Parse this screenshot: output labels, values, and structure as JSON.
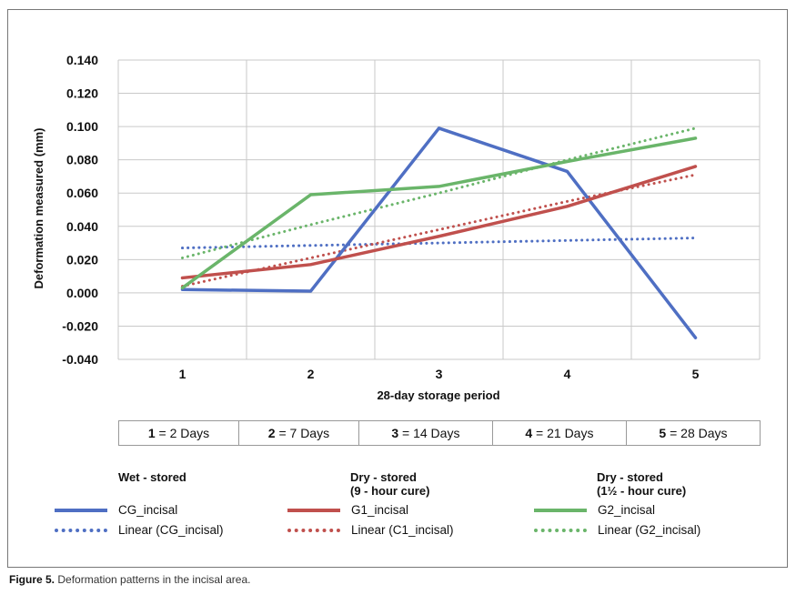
{
  "chart_data": {
    "type": "line",
    "categories": [
      "1",
      "2",
      "3",
      "4",
      "5"
    ],
    "xlabel": "28-day storage period",
    "ylabel": "Deformation measured (mm)",
    "ylim": [
      -0.04,
      0.14
    ],
    "yticks": [
      "0.140",
      "0.120",
      "0.100",
      "0.080",
      "0.060",
      "0.040",
      "0.020",
      "0.000",
      "-0.020",
      "-0.040"
    ],
    "yticks_values": [
      0.14,
      0.12,
      0.1,
      0.08,
      0.06,
      0.04,
      0.02,
      0.0,
      -0.02,
      -0.04
    ],
    "grid": true,
    "series": [
      {
        "name": "CG_incisal",
        "style": "solid",
        "color": "#4f6fc3",
        "values": [
          0.002,
          0.001,
          0.099,
          0.073,
          -0.027
        ]
      },
      {
        "name": "G1_incisal",
        "style": "solid",
        "color": "#c0504d",
        "values": [
          0.009,
          0.017,
          0.034,
          0.052,
          0.076
        ]
      },
      {
        "name": "G2_incisal",
        "style": "solid",
        "color": "#6ab56a",
        "values": [
          0.003,
          0.059,
          0.064,
          0.079,
          0.093
        ]
      },
      {
        "name": "Linear (CG_incisal)",
        "style": "dotted",
        "color": "#4f6fc3",
        "values": [
          0.027,
          0.0285,
          0.03,
          0.0315,
          0.033
        ]
      },
      {
        "name": "Linear (C1_incisal)",
        "style": "dotted",
        "color": "#c0504d",
        "values": [
          0.004,
          0.021,
          0.038,
          0.055,
          0.071
        ]
      },
      {
        "name": "Linear (G2_incisal)",
        "style": "dotted",
        "color": "#6ab56a",
        "values": [
          0.021,
          0.041,
          0.06,
          0.08,
          0.099
        ]
      }
    ]
  },
  "day_table": [
    {
      "num": "1",
      "text": " = 2 Days"
    },
    {
      "num": "2",
      "text": " = 7 Days"
    },
    {
      "num": "3",
      "text": " = 14 Days"
    },
    {
      "num": "4",
      "text": " = 21 Days"
    },
    {
      "num": "5",
      "text": " = 28 Days"
    }
  ],
  "legend": {
    "groups": [
      {
        "title_line1": "Wet - stored",
        "title_line2": ""
      },
      {
        "title_line1": "Dry - stored",
        "title_line2": "(9 - hour cure)"
      },
      {
        "title_line1": "Dry - stored",
        "title_line2": "(1½ - hour cure)"
      }
    ]
  },
  "caption": {
    "label": "Figure 5.",
    "text": " Deformation patterns in the incisal area."
  }
}
